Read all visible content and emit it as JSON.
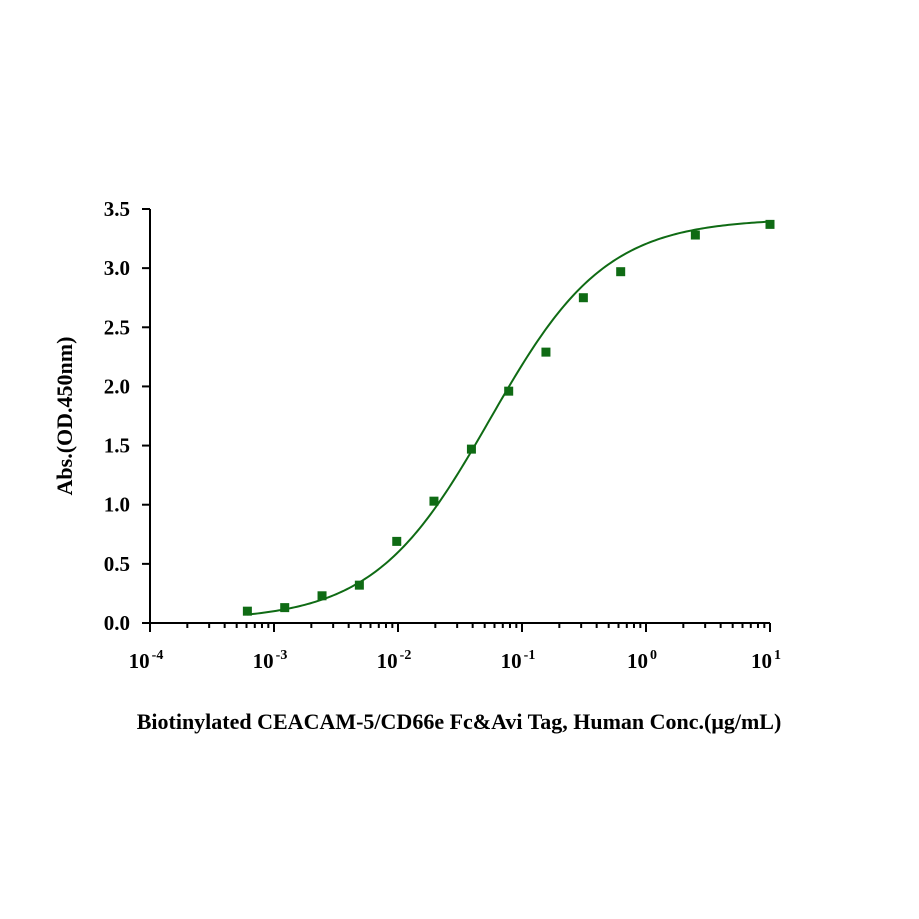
{
  "chart_data": {
    "type": "scatter",
    "title": "",
    "xlabel": "Biotinylated CEACAM-5/CD66e Fc&Avi Tag, Human  Conc.(μg/mL)",
    "ylabel": "Abs.(OD.450nm)",
    "x_scale": "log",
    "xlim": [
      0.0001,
      10
    ],
    "ylim": [
      0,
      3.5
    ],
    "x_ticks": [
      {
        "base": "10",
        "exp": "-4",
        "value": 0.0001
      },
      {
        "base": "10",
        "exp": "-3",
        "value": 0.001
      },
      {
        "base": "10",
        "exp": "-2",
        "value": 0.01
      },
      {
        "base": "10",
        "exp": "-1",
        "value": 0.1
      },
      {
        "base": "10",
        "exp": "0",
        "value": 1
      },
      {
        "base": "10",
        "exp": "1",
        "value": 10
      }
    ],
    "y_ticks": [
      "0.0",
      "0.5",
      "1.0",
      "1.5",
      "2.0",
      "2.5",
      "3.0",
      "3.5"
    ],
    "grid": false,
    "legend": "none",
    "color": "#0f6b14",
    "series": [
      {
        "marker": "square",
        "x": [
          0.00061,
          0.00122,
          0.00244,
          0.00488,
          0.00977,
          0.0195,
          0.0391,
          0.0781,
          0.156,
          0.3125,
          0.625,
          2.5,
          10
        ],
        "y": [
          0.1,
          0.13,
          0.23,
          0.32,
          0.69,
          1.03,
          1.47,
          1.96,
          2.29,
          2.75,
          2.97,
          3.28,
          3.37
        ]
      }
    ],
    "fit": {
      "model": "4PL",
      "bottom": 0.02,
      "top": 3.42,
      "ec50": 0.055,
      "hill": 0.93,
      "x_range": [
        0.00061,
        10
      ]
    }
  }
}
